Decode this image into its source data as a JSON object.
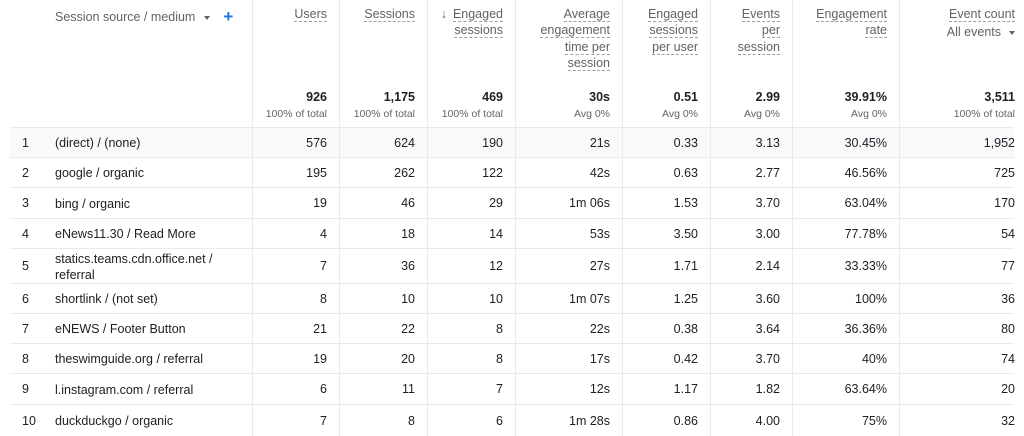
{
  "dimension": {
    "label": "Session source / medium"
  },
  "columns": [
    {
      "key": "users",
      "label_lines": [
        "Users"
      ]
    },
    {
      "key": "sessions",
      "label_lines": [
        "Sessions"
      ]
    },
    {
      "key": "engaged_sessions",
      "label_lines": [
        "Engaged",
        "sessions"
      ],
      "sort_icon": "arrow-down-icon"
    },
    {
      "key": "avg_time",
      "label_lines": [
        "Average",
        "engagement",
        "time per",
        "session"
      ]
    },
    {
      "key": "engaged_per_user",
      "label_lines": [
        "Engaged",
        "sessions",
        "per user"
      ]
    },
    {
      "key": "events_per_session",
      "label_lines": [
        "Events",
        "per",
        "session"
      ]
    },
    {
      "key": "engagement_rate",
      "label_lines": [
        "Engagement",
        "rate"
      ]
    },
    {
      "key": "event_count",
      "label_lines": [
        "Event count"
      ],
      "selector": "All events"
    }
  ],
  "totals": [
    {
      "value": "926",
      "sub": "100% of total"
    },
    {
      "value": "1,175",
      "sub": "100% of total"
    },
    {
      "value": "469",
      "sub": "100% of total"
    },
    {
      "value": "30s",
      "sub": "Avg 0%"
    },
    {
      "value": "0.51",
      "sub": "Avg 0%"
    },
    {
      "value": "2.99",
      "sub": "Avg 0%"
    },
    {
      "value": "39.91%",
      "sub": "Avg 0%"
    },
    {
      "value": "3,511",
      "sub": "100% of total"
    }
  ],
  "rows": [
    {
      "index": "1",
      "source": [
        "(direct) / (none)"
      ],
      "values": [
        "576",
        "624",
        "190",
        "21s",
        "0.33",
        "3.13",
        "30.45%",
        "1,952"
      ]
    },
    {
      "index": "2",
      "source": [
        "google / organic"
      ],
      "values": [
        "195",
        "262",
        "122",
        "42s",
        "0.63",
        "2.77",
        "46.56%",
        "725"
      ]
    },
    {
      "index": "3",
      "source": [
        "bing / organic"
      ],
      "values": [
        "19",
        "46",
        "29",
        "1m 06s",
        "1.53",
        "3.70",
        "63.04%",
        "170"
      ]
    },
    {
      "index": "4",
      "source": [
        "eNews11.30 / Read More"
      ],
      "values": [
        "4",
        "18",
        "14",
        "53s",
        "3.50",
        "3.00",
        "77.78%",
        "54"
      ]
    },
    {
      "index": "5",
      "source": [
        "statics.teams.cdn.office.net /",
        "referral"
      ],
      "values": [
        "7",
        "36",
        "12",
        "27s",
        "1.71",
        "2.14",
        "33.33%",
        "77"
      ]
    },
    {
      "index": "6",
      "source": [
        "shortlink / (not set)"
      ],
      "values": [
        "8",
        "10",
        "10",
        "1m 07s",
        "1.25",
        "3.60",
        "100%",
        "36"
      ]
    },
    {
      "index": "7",
      "source": [
        "eNEWS / Footer Button"
      ],
      "values": [
        "21",
        "22",
        "8",
        "22s",
        "0.38",
        "3.64",
        "36.36%",
        "80"
      ]
    },
    {
      "index": "8",
      "source": [
        "theswimguide.org / referral"
      ],
      "values": [
        "19",
        "20",
        "8",
        "17s",
        "0.42",
        "3.70",
        "40%",
        "74"
      ]
    },
    {
      "index": "9",
      "source": [
        "l.instagram.com / referral"
      ],
      "values": [
        "6",
        "11",
        "7",
        "12s",
        "1.17",
        "1.82",
        "63.64%",
        "20"
      ]
    },
    {
      "index": "10",
      "source": [
        "duckduckgo / organic"
      ],
      "values": [
        "7",
        "8",
        "6",
        "1m 28s",
        "0.86",
        "4.00",
        "75%",
        "32"
      ]
    }
  ]
}
